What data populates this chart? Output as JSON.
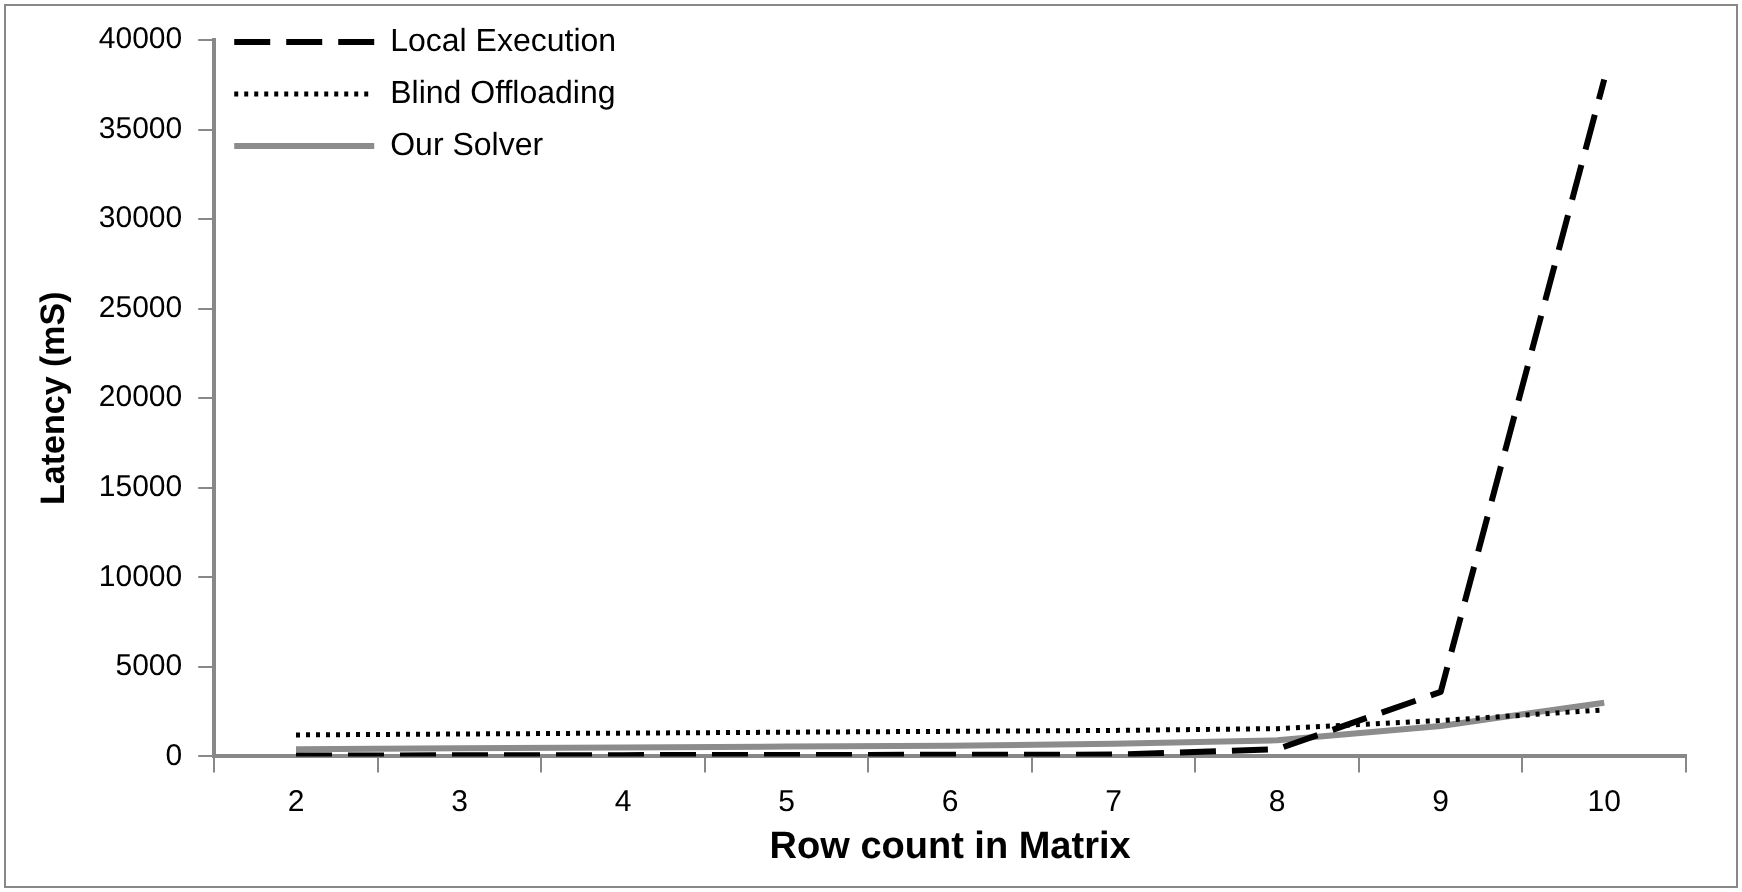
{
  "chart_data": {
    "type": "line",
    "xlabel": "Row count in Matrix",
    "ylabel": "Latency (mS)",
    "categories": [
      "2",
      "3",
      "4",
      "5",
      "6",
      "7",
      "8",
      "9",
      "10"
    ],
    "series": [
      {
        "name": "Local Execution",
        "color": "#000000",
        "line_style": "dashed",
        "values": [
          50,
          60,
          70,
          80,
          90,
          100,
          400,
          3600,
          37800
        ]
      },
      {
        "name": "Blind Offloading",
        "color": "#000000",
        "line_style": "dotted",
        "values": [
          1200,
          1250,
          1300,
          1350,
          1400,
          1450,
          1550,
          2000,
          2600
        ]
      },
      {
        "name": "Our Solver",
        "color": "#8c8c8c",
        "line_style": "solid",
        "values": [
          400,
          450,
          500,
          550,
          600,
          700,
          900,
          1700,
          3000
        ]
      }
    ],
    "ylim": [
      0,
      40000
    ],
    "yticks": [
      0,
      5000,
      10000,
      15000,
      20000,
      25000,
      30000,
      35000,
      40000
    ],
    "grid": false,
    "legend": "top left",
    "marker": "none"
  }
}
